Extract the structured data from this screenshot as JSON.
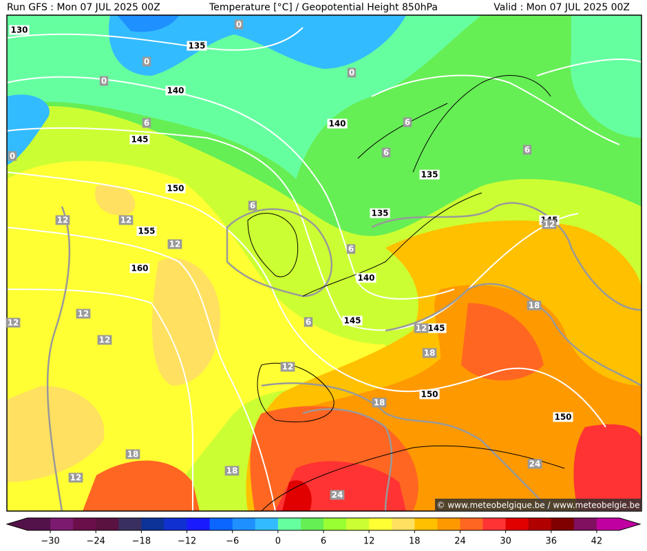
{
  "header": {
    "run": "Run GFS : Mon 07 JUL 2025 00Z",
    "title": "Temperature [°C] / Geopotential Height 850hPa",
    "valid": "Valid : Mon 07 JUL 2025 00Z"
  },
  "map": {
    "height_labels": [
      "130",
      "135",
      "140",
      "140",
      "145",
      "150",
      "155",
      "160",
      "135",
      "135",
      "140",
      "145",
      "145",
      "145",
      "150",
      "150"
    ],
    "temperature_labels": [
      "0",
      "0",
      "0",
      "0",
      "0",
      "6",
      "6",
      "6",
      "6",
      "6",
      "6",
      "6",
      "12",
      "12",
      "12",
      "12",
      "12",
      "12",
      "12",
      "12",
      "12",
      "18",
      "18",
      "18",
      "18",
      "18",
      "12",
      "24",
      "24"
    ],
    "credit": "© www.meteobelgique.be / www.meteobelgie.be"
  },
  "colorbar": {
    "lim": [
      -33,
      45
    ],
    "ticks": [
      {
        "value": -30,
        "label": "−30"
      },
      {
        "value": -24,
        "label": "−24"
      },
      {
        "value": -18,
        "label": "−18"
      },
      {
        "value": -12,
        "label": "−12"
      },
      {
        "value": -6,
        "label": "−6"
      },
      0,
      6,
      12,
      18,
      24,
      30,
      36,
      42
    ],
    "colors": [
      "#54124a",
      "#7b1a6e",
      "#6a0f4a",
      "#5a1240",
      "#3a3060",
      "#0d3399",
      "#1030d0",
      "#1a1aff",
      "#0a66ff",
      "#1e90ff",
      "#33bbff",
      "#66ffa0",
      "#66ee55",
      "#99ff33",
      "#ccff33",
      "#ffff33",
      "#ffe060",
      "#ffc000",
      "#ff9900",
      "#ff6622",
      "#ff3333",
      "#e00000",
      "#b00000",
      "#800000",
      "#801060",
      "#c000a0"
    ]
  }
}
